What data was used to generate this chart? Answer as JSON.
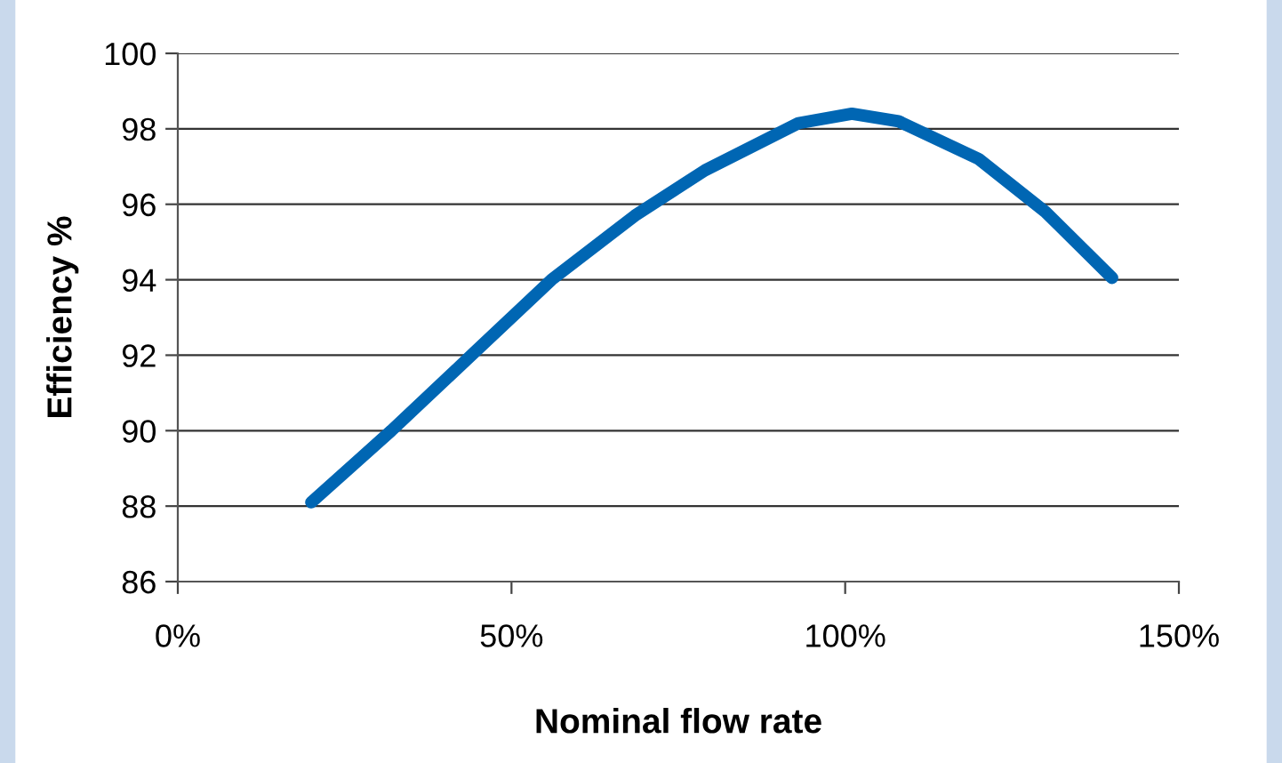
{
  "chart_data": {
    "type": "line",
    "xlabel": "Nominal flow rate",
    "ylabel": "Efficiency %",
    "x": [
      20,
      32,
      44,
      56,
      68.5,
      79,
      93,
      101,
      108,
      120,
      130,
      140
    ],
    "series": [
      {
        "color": "#0066b3",
        "values": [
          88.1,
          90,
          92,
          94,
          95.7,
          96.9,
          98.15,
          98.4,
          98.2,
          97.2,
          95.8,
          94.05
        ]
      }
    ],
    "xlim": [
      0,
      150
    ],
    "xticks": [
      {
        "value": 0,
        "label": "0%"
      },
      {
        "value": 50,
        "label": "50%"
      },
      {
        "value": 100,
        "label": "100%"
      },
      {
        "value": 150,
        "label": "150%"
      }
    ],
    "ylim": [
      86,
      100
    ],
    "yticks": [
      86,
      88,
      90,
      92,
      94,
      96,
      98,
      100
    ],
    "grid": "y",
    "marker": "none",
    "line_style": "solid"
  }
}
